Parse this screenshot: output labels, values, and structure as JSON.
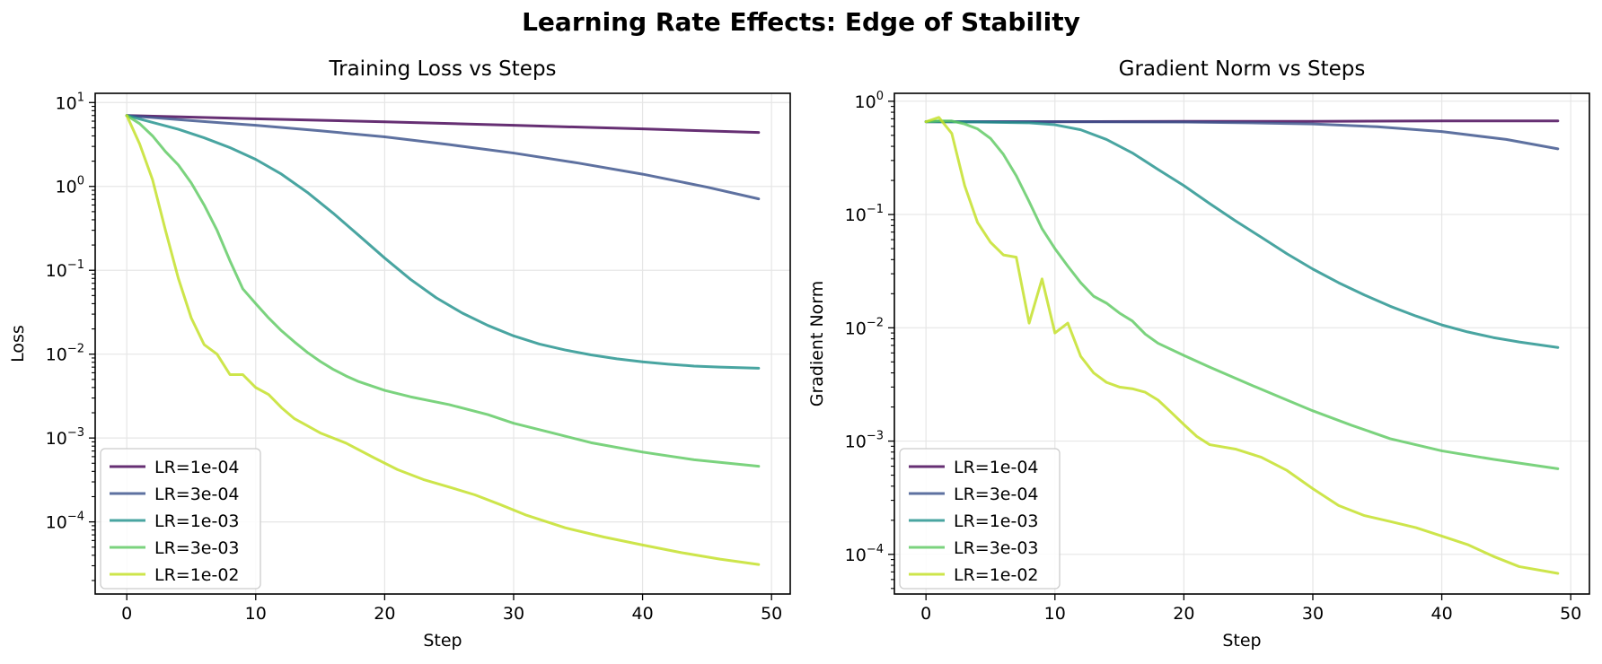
{
  "figure": {
    "title": "Learning Rate Effects: Edge of Stability"
  },
  "colors": {
    "LR=1e-04": "#440154",
    "LR=3e-04": "#3b528b",
    "LR=1e-03": "#21918c",
    "LR=3e-03": "#5ec962",
    "LR=1e-02": "#c2df23",
    "grid": "#e6e6e6"
  },
  "chart_data": [
    {
      "type": "line",
      "title": "Training Loss vs Steps",
      "xlabel": "Step",
      "ylabel": "Loss",
      "yscale": "log",
      "xlim": [
        -2.45,
        51.45
      ],
      "ylim_log10": [
        -4.86,
        1.11
      ],
      "xticks": [
        0,
        10,
        20,
        30,
        40,
        50
      ],
      "yticks_exp": [
        1,
        0,
        -1,
        -2,
        -3,
        -4
      ],
      "ytick_labels": [
        "10^1",
        "10^0",
        "10^-1",
        "10^-2",
        "10^-3",
        "10^-4"
      ],
      "grid": true,
      "legend_location": "lower-left",
      "legend": [
        "LR=1e-04",
        "LR=3e-04",
        "LR=1e-03",
        "LR=3e-03",
        "LR=1e-02"
      ],
      "series": [
        {
          "name": "LR=1e-04",
          "points": [
            [
              0,
              7.0
            ],
            [
              10,
              6.4
            ],
            [
              20,
              5.9
            ],
            [
              30,
              5.35
            ],
            [
              40,
              4.85
            ],
            [
              49,
              4.4
            ]
          ]
        },
        {
          "name": "LR=3e-04",
          "points": [
            [
              0,
              7.0
            ],
            [
              5,
              6.1
            ],
            [
              10,
              5.35
            ],
            [
              15,
              4.6
            ],
            [
              20,
              3.9
            ],
            [
              25,
              3.15
            ],
            [
              30,
              2.5
            ],
            [
              35,
              1.9
            ],
            [
              40,
              1.4
            ],
            [
              45,
              0.98
            ],
            [
              49,
              0.71
            ]
          ]
        },
        {
          "name": "LR=1e-03",
          "points": [
            [
              0,
              7.0
            ],
            [
              2,
              5.8
            ],
            [
              4,
              4.8
            ],
            [
              6,
              3.8
            ],
            [
              8,
              2.9
            ],
            [
              10,
              2.1
            ],
            [
              12,
              1.4
            ],
            [
              14,
              0.85
            ],
            [
              16,
              0.48
            ],
            [
              18,
              0.26
            ],
            [
              20,
              0.14
            ],
            [
              22,
              0.078
            ],
            [
              24,
              0.047
            ],
            [
              26,
              0.031
            ],
            [
              28,
              0.022
            ],
            [
              30,
              0.0165
            ],
            [
              32,
              0.0132
            ],
            [
              34,
              0.0112
            ],
            [
              36,
              0.0098
            ],
            [
              38,
              0.0088
            ],
            [
              40,
              0.0081
            ],
            [
              42,
              0.0076
            ],
            [
              44,
              0.0072
            ],
            [
              46,
              0.007
            ],
            [
              49,
              0.0068
            ]
          ]
        },
        {
          "name": "LR=3e-03",
          "points": [
            [
              0,
              7.0
            ],
            [
              1,
              5.6
            ],
            [
              2,
              4.0
            ],
            [
              3,
              2.6
            ],
            [
              4,
              1.8
            ],
            [
              5,
              1.1
            ],
            [
              6,
              0.6
            ],
            [
              7,
              0.3
            ],
            [
              8,
              0.13
            ],
            [
              9,
              0.06
            ],
            [
              10,
              0.04
            ],
            [
              11,
              0.027
            ],
            [
              12,
              0.019
            ],
            [
              13,
              0.014
            ],
            [
              14,
              0.0105
            ],
            [
              15,
              0.0082
            ],
            [
              16,
              0.0066
            ],
            [
              17,
              0.0055
            ],
            [
              18,
              0.0047
            ],
            [
              20,
              0.0037
            ],
            [
              22,
              0.0031
            ],
            [
              25,
              0.0025
            ],
            [
              28,
              0.0019
            ],
            [
              30,
              0.0015
            ],
            [
              33,
              0.00115
            ],
            [
              36,
              0.00088
            ],
            [
              40,
              0.00068
            ],
            [
              44,
              0.00055
            ],
            [
              49,
              0.00046
            ]
          ]
        },
        {
          "name": "LR=1e-02",
          "points": [
            [
              0,
              7.0
            ],
            [
              1,
              3.2
            ],
            [
              2,
              1.2
            ],
            [
              3,
              0.3
            ],
            [
              4,
              0.08
            ],
            [
              5,
              0.027
            ],
            [
              6,
              0.013
            ],
            [
              7,
              0.01
            ],
            [
              8,
              0.0057
            ],
            [
              9,
              0.0057
            ],
            [
              10,
              0.004
            ],
            [
              11,
              0.0033
            ],
            [
              12,
              0.0023
            ],
            [
              13,
              0.0017
            ],
            [
              14,
              0.0014
            ],
            [
              15,
              0.00115
            ],
            [
              17,
              0.00087
            ],
            [
              19,
              0.0006
            ],
            [
              21,
              0.00042
            ],
            [
              23,
              0.00032
            ],
            [
              25,
              0.00026
            ],
            [
              27,
              0.00021
            ],
            [
              29,
              0.00016
            ],
            [
              31,
              0.00012
            ],
            [
              34,
              8.5e-05
            ],
            [
              37,
              6.6e-05
            ],
            [
              40,
              5.3e-05
            ],
            [
              43,
              4.3e-05
            ],
            [
              46,
              3.6e-05
            ],
            [
              49,
              3.1e-05
            ]
          ]
        }
      ]
    },
    {
      "type": "line",
      "title": "Gradient Norm vs Steps",
      "xlabel": "Step",
      "ylabel": "Gradient Norm",
      "yscale": "log",
      "xlim": [
        -2.45,
        51.45
      ],
      "ylim_log10": [
        -4.35,
        0.07
      ],
      "xticks": [
        0,
        10,
        20,
        30,
        40,
        50
      ],
      "yticks_exp": [
        0,
        -1,
        -2,
        -3,
        -4
      ],
      "ytick_labels": [
        "10^0",
        "10^-1",
        "10^-2",
        "10^-3",
        "10^-4"
      ],
      "grid": true,
      "legend_location": "lower-left",
      "legend": [
        "LR=1e-04",
        "LR=3e-04",
        "LR=1e-03",
        "LR=3e-03",
        "LR=1e-02"
      ],
      "series": [
        {
          "name": "LR=1e-04",
          "points": [
            [
              0,
              0.66
            ],
            [
              10,
              0.66
            ],
            [
              20,
              0.665
            ],
            [
              30,
              0.665
            ],
            [
              40,
              0.67
            ],
            [
              49,
              0.67
            ]
          ]
        },
        {
          "name": "LR=3e-04",
          "points": [
            [
              0,
              0.66
            ],
            [
              10,
              0.66
            ],
            [
              20,
              0.655
            ],
            [
              25,
              0.645
            ],
            [
              30,
              0.63
            ],
            [
              35,
              0.595
            ],
            [
              40,
              0.54
            ],
            [
              45,
              0.46
            ],
            [
              49,
              0.38
            ]
          ]
        },
        {
          "name": "LR=1e-03",
          "points": [
            [
              0,
              0.66
            ],
            [
              4,
              0.655
            ],
            [
              8,
              0.645
            ],
            [
              10,
              0.62
            ],
            [
              12,
              0.56
            ],
            [
              14,
              0.46
            ],
            [
              16,
              0.35
            ],
            [
              18,
              0.25
            ],
            [
              20,
              0.18
            ],
            [
              22,
              0.125
            ],
            [
              24,
              0.088
            ],
            [
              26,
              0.063
            ],
            [
              28,
              0.045
            ],
            [
              30,
              0.033
            ],
            [
              32,
              0.025
            ],
            [
              34,
              0.0195
            ],
            [
              36,
              0.0155
            ],
            [
              38,
              0.0127
            ],
            [
              40,
              0.0106
            ],
            [
              42,
              0.0092
            ],
            [
              44,
              0.0082
            ],
            [
              46,
              0.0075
            ],
            [
              49,
              0.0067
            ]
          ]
        },
        {
          "name": "LR=3e-03",
          "points": [
            [
              0,
              0.66
            ],
            [
              1,
              0.67
            ],
            [
              2,
              0.67
            ],
            [
              3,
              0.63
            ],
            [
              4,
              0.57
            ],
            [
              5,
              0.47
            ],
            [
              6,
              0.34
            ],
            [
              7,
              0.22
            ],
            [
              8,
              0.13
            ],
            [
              9,
              0.075
            ],
            [
              10,
              0.05
            ],
            [
              11,
              0.035
            ],
            [
              12,
              0.025
            ],
            [
              13,
              0.019
            ],
            [
              14,
              0.0165
            ],
            [
              15,
              0.0135
            ],
            [
              16,
              0.0115
            ],
            [
              17,
              0.0088
            ],
            [
              18,
              0.0073
            ],
            [
              20,
              0.0057
            ],
            [
              22,
              0.0045
            ],
            [
              25,
              0.0032
            ],
            [
              28,
              0.0023
            ],
            [
              30,
              0.00185
            ],
            [
              33,
              0.00138
            ],
            [
              36,
              0.00105
            ],
            [
              40,
              0.00082
            ],
            [
              44,
              0.00069
            ],
            [
              49,
              0.00057
            ]
          ]
        },
        {
          "name": "LR=1e-02",
          "points": [
            [
              0,
              0.66
            ],
            [
              1,
              0.72
            ],
            [
              2,
              0.52
            ],
            [
              3,
              0.18
            ],
            [
              4,
              0.085
            ],
            [
              5,
              0.057
            ],
            [
              6,
              0.044
            ],
            [
              7,
              0.042
            ],
            [
              8,
              0.011
            ],
            [
              9,
              0.027
            ],
            [
              10,
              0.009
            ],
            [
              11,
              0.011
            ],
            [
              12,
              0.0056
            ],
            [
              13,
              0.004
            ],
            [
              14,
              0.0033
            ],
            [
              15,
              0.003
            ],
            [
              16,
              0.0029
            ],
            [
              17,
              0.0027
            ],
            [
              18,
              0.0023
            ],
            [
              19,
              0.0018
            ],
            [
              20,
              0.0014
            ],
            [
              21,
              0.0011
            ],
            [
              22,
              0.00093
            ],
            [
              24,
              0.00085
            ],
            [
              26,
              0.00072
            ],
            [
              28,
              0.00055
            ],
            [
              30,
              0.00038
            ],
            [
              32,
              0.00027
            ],
            [
              34,
              0.00022
            ],
            [
              36,
              0.000195
            ],
            [
              38,
              0.000172
            ],
            [
              40,
              0.000145
            ],
            [
              42,
              0.000122
            ],
            [
              44,
              9.6e-05
            ],
            [
              46,
              7.8e-05
            ],
            [
              49,
              6.8e-05
            ]
          ]
        }
      ]
    }
  ]
}
